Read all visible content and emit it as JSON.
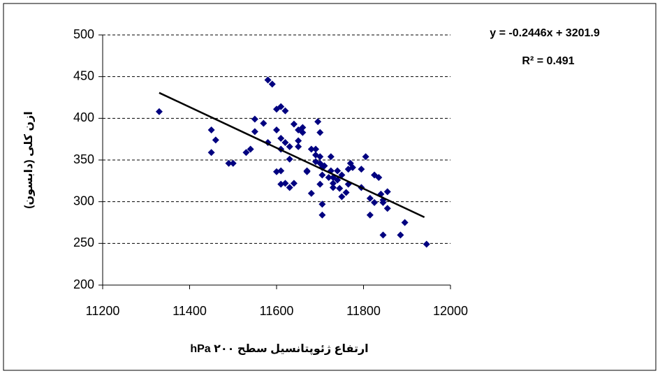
{
  "chart_data": {
    "type": "scatter",
    "x_label": "ارتفاع ژئوپتانسیل سطح ۲۰۰ hPa",
    "y_label": "ازن کلی (دابسون)",
    "xlim": [
      11200,
      12000
    ],
    "xticks": [
      11200,
      11400,
      11600,
      11800,
      12000
    ],
    "ylim": [
      200,
      500
    ],
    "yticks": [
      200,
      250,
      300,
      350,
      400,
      450,
      500
    ],
    "grid": true,
    "series": [
      {
        "color": "#000080",
        "x": [
          11330,
          11450,
          11460,
          11450,
          11490,
          11500,
          11530,
          11540,
          11550,
          11550,
          11570,
          11580,
          11580,
          11590,
          11600,
          11600,
          11610,
          11620,
          11610,
          11620,
          11630,
          11610,
          11600,
          11610,
          11620,
          11610,
          11630,
          11640,
          11630,
          11640,
          11650,
          11650,
          11660,
          11660,
          11650,
          11670,
          11670,
          11680,
          11680,
          11690,
          11690,
          11690,
          11695,
          11700,
          11700,
          11700,
          11705,
          11705,
          11700,
          11705,
          11705,
          11710,
          11720,
          11725,
          11725,
          11730,
          11730,
          11740,
          11740,
          11730,
          11745,
          11750,
          11750,
          11760,
          11765,
          11765,
          11770,
          11775,
          11795,
          11795,
          11805,
          11815,
          11815,
          11825,
          11835,
          11825,
          11840,
          11845,
          11845,
          11855,
          11855,
          11845,
          11895,
          11885,
          11945
        ],
        "values": [
          408,
          386,
          374,
          359,
          346,
          346,
          359,
          363,
          384,
          399,
          394,
          371,
          446,
          441,
          386,
          411,
          414,
          409,
          376,
          371,
          366,
          363,
          336,
          337,
          322,
          321,
          317,
          322,
          351,
          393,
          386,
          366,
          389,
          383,
          373,
          336,
          337,
          310,
          363,
          363,
          356,
          348,
          396,
          383,
          354,
          346,
          341,
          332,
          321,
          297,
          284,
          343,
          329,
          354,
          337,
          322,
          317,
          326,
          337,
          329,
          316,
          306,
          332,
          311,
          321,
          339,
          346,
          341,
          339,
          317,
          354,
          304,
          284,
          332,
          329,
          299,
          309,
          302,
          260,
          312,
          292,
          299,
          275,
          260,
          249
        ]
      }
    ],
    "trendline": {
      "x": [
        11330,
        11940
      ],
      "values": [
        430.6,
        281.4
      ],
      "color": "#000000",
      "equation": "y = -0.2446x + 3201.9",
      "r2": "R² = 0.491"
    }
  }
}
